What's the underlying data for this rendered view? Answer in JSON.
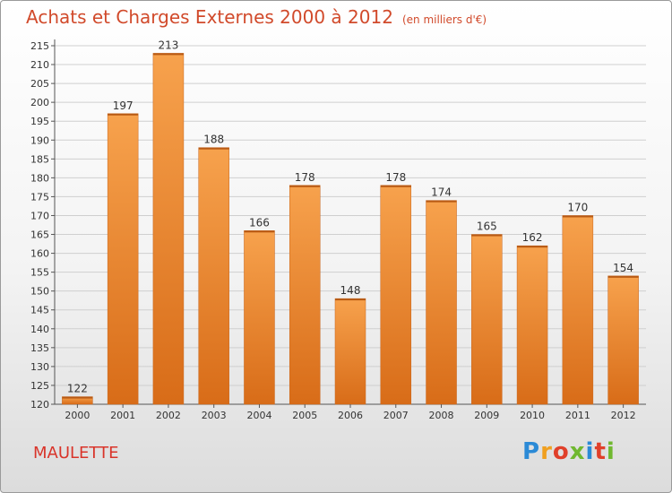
{
  "header": {
    "title": "Achats et Charges Externes 2000 à 2012",
    "subtitle": "(en milliers d'€)"
  },
  "commune": "MAULETTE",
  "logo": {
    "text": "Proxiti",
    "letters": [
      {
        "ch": "P",
        "color": "#2b8ad6"
      },
      {
        "ch": "r",
        "color": "#f0a020"
      },
      {
        "ch": "o",
        "color": "#e0402a"
      },
      {
        "ch": "x",
        "color": "#70b830"
      },
      {
        "ch": "i",
        "color": "#2b8ad6"
      },
      {
        "ch": "t",
        "color": "#e0402a"
      },
      {
        "ch": "i",
        "color": "#70b830"
      }
    ]
  },
  "colors": {
    "bar_light": "#f7a24d",
    "bar_dark": "#d86c18",
    "title": "#d14a2b"
  },
  "chart_data": {
    "type": "bar",
    "title": "Achats et Charges Externes 2000 à 2012",
    "subtitle": "(en milliers d'€)",
    "categories": [
      "2000",
      "2001",
      "2002",
      "2003",
      "2004",
      "2005",
      "2006",
      "2007",
      "2008",
      "2009",
      "2010",
      "2011",
      "2012"
    ],
    "values": [
      122,
      197,
      213,
      188,
      166,
      178,
      148,
      178,
      174,
      165,
      162,
      170,
      154
    ],
    "yticks": [
      120,
      125,
      130,
      135,
      140,
      145,
      150,
      155,
      160,
      165,
      170,
      175,
      180,
      185,
      190,
      195,
      200,
      205,
      210,
      215
    ],
    "ylim": [
      120,
      215
    ],
    "xlabel": "",
    "ylabel": "",
    "grid": true
  }
}
